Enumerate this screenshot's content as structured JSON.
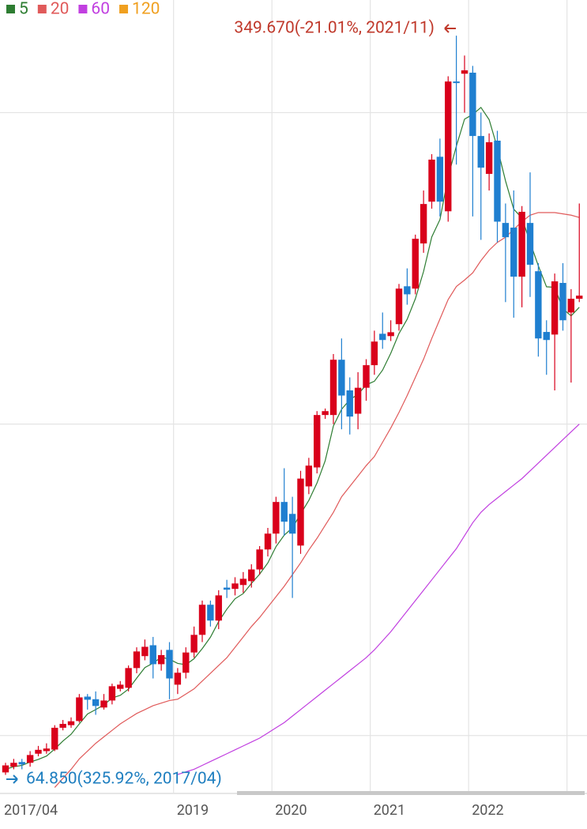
{
  "chart_data": {
    "type": "candlestick",
    "categories": [
      "2017/04",
      null,
      null,
      null,
      null,
      null,
      null,
      null,
      null,
      null,
      null,
      null,
      null,
      null,
      null,
      null,
      null,
      null,
      null,
      null,
      null,
      "2019",
      null,
      null,
      null,
      null,
      null,
      null,
      null,
      null,
      null,
      null,
      null,
      "2020",
      null,
      null,
      null,
      null,
      null,
      null,
      null,
      null,
      null,
      null,
      null,
      "2021",
      null,
      null,
      null,
      null,
      null,
      null,
      null,
      null,
      null,
      null,
      null,
      "2022",
      null,
      null,
      null,
      null,
      null,
      null,
      null,
      null,
      null,
      null,
      null,
      null,
      null
    ],
    "open": [
      65.8,
      68,
      69.8,
      69.5,
      73,
      74,
      74.6,
      83,
      84,
      85.6,
      95,
      94,
      90.8,
      93.5,
      98,
      98.4,
      106,
      110.6,
      114.8,
      107.5,
      113,
      99.6,
      104.2,
      112,
      118.8,
      130.4,
      124.3,
      137,
      136.5,
      138,
      139.5,
      144,
      151.7,
      157.8,
      170,
      165.4,
      153.2,
      176,
      183.3,
      203.5,
      203.5,
      224.8,
      213,
      204,
      214,
      222.7,
      234.8,
      233.9,
      238.5,
      253.1,
      252.2,
      269.6,
      285.7,
      303,
      282,
      332,
      335,
      335.4,
      311,
      296.4,
      309.2,
      277.5,
      275.7,
      256.8,
      277.5,
      258.9,
      235.5,
      234.5,
      254.4,
      243,
      248.3
    ],
    "high": [
      69.5,
      71,
      71,
      74,
      76,
      77,
      84,
      86,
      87,
      96,
      96,
      97,
      96,
      100,
      101,
      107,
      114,
      117,
      118,
      113,
      116,
      106,
      114,
      122,
      132,
      132,
      136,
      140,
      141,
      143,
      146,
      153,
      160,
      172,
      183,
      172,
      182,
      187,
      205,
      206,
      227,
      233,
      218,
      220,
      225,
      236,
      243,
      240,
      254,
      260,
      273,
      290,
      304,
      310,
      334,
      349.67,
      342,
      338,
      320,
      312,
      313,
      285,
      290,
      284,
      297,
      262,
      240,
      258,
      262,
      252,
      285
    ],
    "low": [
      64.85,
      67,
      67,
      68,
      72,
      73,
      74,
      82,
      83,
      85,
      90,
      88,
      90,
      92,
      97,
      97,
      104,
      109,
      102,
      105,
      94,
      96,
      102,
      110,
      116,
      122,
      121,
      133,
      134,
      135,
      137,
      142,
      149,
      154,
      157,
      133,
      150,
      173,
      181,
      202,
      200,
      198,
      196,
      198,
      209,
      219,
      229,
      232,
      236,
      246,
      250,
      266,
      283,
      280,
      278,
      300,
      320,
      280,
      271,
      290,
      270,
      247,
      241,
      245,
      249,
      226,
      219,
      213,
      236,
      216,
      247
    ],
    "close": [
      68.5,
      69.5,
      68.9,
      72.5,
      74.5,
      75,
      83,
      84.5,
      85.5,
      94.7,
      93.8,
      91.4,
      93.5,
      99,
      99.6,
      106,
      112.4,
      114.2,
      107.5,
      111,
      102,
      104.2,
      112,
      118.8,
      130.4,
      124.3,
      134,
      136.2,
      138.6,
      140.4,
      144,
      151.7,
      157.8,
      170,
      162.4,
      157.8,
      179,
      184,
      203.5,
      205,
      224.8,
      211,
      202.9,
      214,
      222.7,
      231.8,
      232.4,
      235.4,
      252.2,
      250,
      271.4,
      284.8,
      301.9,
      285.7,
      332,
      331.7,
      336.3,
      311,
      298.8,
      308.6,
      278,
      272,
      256.8,
      281.8,
      261.4,
      233,
      232.4,
      255,
      240,
      248.3,
      249.5
    ],
    "up_color": "#d9001b",
    "down_color": "#1f7fd0",
    "moving_averages": [
      {
        "name": "5",
        "color": "#2e7d32",
        "values": [
          67,
          68,
          68.5,
          69.8,
          70.8,
          72.1,
          74.8,
          77.9,
          80.5,
          84.5,
          88.3,
          90,
          91.8,
          94.5,
          95.5,
          97.9,
          102.1,
          106.2,
          107.9,
          110.2,
          109.4,
          107.8,
          107.3,
          109.6,
          113.5,
          117.9,
          123.9,
          128.7,
          132.7,
          134.7,
          138.6,
          142.2,
          146.5,
          152.8,
          157.2,
          160,
          165.4,
          170.6,
          177.3,
          185.9,
          199.3,
          205.7,
          209.4,
          211.5,
          215.1,
          216.5,
          220.8,
          227.3,
          234.9,
          240.4,
          248.3,
          258.8,
          272.1,
          278.8,
          295.2,
          307.1,
          317.5,
          319.3,
          322,
          317.3,
          306.5,
          293.7,
          282.8,
          279.4,
          270,
          261,
          252.9,
          252.7,
          244.4,
          241.7,
          245
        ]
      },
      {
        "name": "20",
        "color": "#e05a5a",
        "values": [
          null,
          null,
          null,
          null,
          null,
          null,
          60,
          63.5,
          67,
          71,
          74,
          77,
          79.5,
          82,
          84.5,
          86.5,
          88.5,
          90,
          91.5,
          92.5,
          93.5,
          94,
          96,
          98,
          101,
          104,
          107,
          110,
          114,
          118,
          122,
          125.5,
          129.5,
          133.5,
          137.5,
          142,
          146.5,
          151.5,
          156,
          161,
          166,
          172,
          176,
          180,
          184,
          187.5,
          193,
          198.5,
          204.5,
          211,
          218,
          225,
          233,
          240.5,
          248,
          253,
          255.5,
          258.3,
          263,
          267,
          270,
          272,
          275,
          278,
          280.5,
          281.5,
          281.5,
          281.5,
          281,
          280.5,
          279.6
        ]
      },
      {
        "name": "60",
        "color": "#c13fe0",
        "values": [
          null,
          null,
          null,
          null,
          null,
          null,
          null,
          null,
          null,
          null,
          null,
          null,
          null,
          null,
          null,
          null,
          null,
          null,
          null,
          null,
          null,
          65,
          66,
          67,
          68.5,
          70,
          71.5,
          73,
          74.5,
          76,
          77.5,
          79,
          81,
          83,
          85,
          87.5,
          90,
          92.5,
          95,
          97.5,
          100,
          102.5,
          105,
          107.5,
          110,
          113,
          116.5,
          120,
          124,
          128,
          132,
          136,
          140,
          144,
          148,
          152,
          157,
          162,
          166,
          169,
          171.5,
          174,
          176.5,
          179,
          182,
          185,
          188,
          191,
          194,
          197,
          200
        ]
      },
      {
        "name": "120",
        "color": "#f0a020"
      }
    ],
    "ylim": [
      58,
      363.4
    ],
    "ygrid": [
      80,
      200,
      320
    ],
    "grid": true,
    "annotations": [
      {
        "text": "349.670(-21.01%, 2021/11)",
        "color": "#c0392b"
      },
      {
        "text": "64.850(325.92%, 2017/04)",
        "color": "#1f7fc0"
      }
    ]
  }
}
